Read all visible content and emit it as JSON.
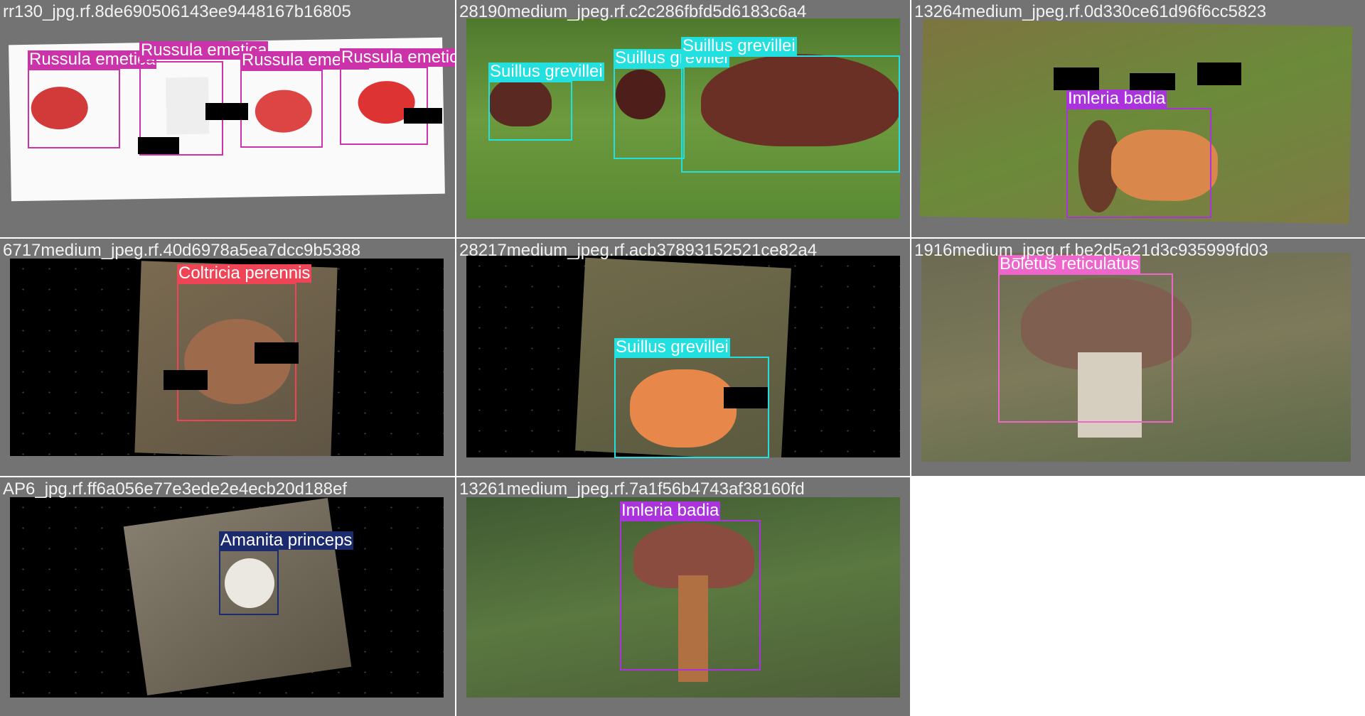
{
  "colors": {
    "russula": "#cc33aa",
    "suillus": "#22e0e0",
    "imleria": "#aa33dd",
    "coltricia": "#ee4455",
    "boletus": "#ee66cc",
    "amanita": "#1c2a6e"
  },
  "tiles": [
    {
      "name": "rr130_jpg.rf.8de690506143ee9448167b16805",
      "boxes": [
        {
          "label": "Russula emetica",
          "color": "russula"
        },
        {
          "label": "Russula emetica",
          "color": "russula"
        },
        {
          "label": "Russula emetica",
          "color": "russula"
        },
        {
          "label": "Russula emetica",
          "color": "russula"
        }
      ]
    },
    {
      "name": "28190medium_jpeg.rf.c2c286fbfd5d6183c6a4",
      "boxes": [
        {
          "label": "Suillus grevillei",
          "color": "suillus"
        },
        {
          "label": "Suillus grevillei",
          "color": "suillus"
        },
        {
          "label": "Suillus grevillei",
          "color": "suillus"
        }
      ]
    },
    {
      "name": "13264medium_jpeg.rf.0d330ce61d96f6cc5823",
      "boxes": [
        {
          "label": "Imleria badia",
          "color": "imleria"
        }
      ]
    },
    {
      "name": "6717medium_jpeg.rf.40d6978a5ea7dcc9b5388",
      "boxes": [
        {
          "label": "Coltricia perennis",
          "color": "coltricia"
        }
      ]
    },
    {
      "name": "28217medium_jpeg.rf.acb37893152521ce82a4",
      "boxes": [
        {
          "label": "Suillus grevillei",
          "color": "suillus"
        }
      ]
    },
    {
      "name": "1916medium_jpeg.rf.be2d5a21d3c935999fd03",
      "boxes": [
        {
          "label": "Boletus reticulatus",
          "color": "boletus"
        }
      ]
    },
    {
      "name": "AP6_jpg.rf.ff6a056e77e3ede2e4ecb20d188ef",
      "boxes": [
        {
          "label": "Amanita princeps",
          "color": "amanita"
        }
      ]
    },
    {
      "name": "13261medium_jpeg.rf.7a1f56b4743af38160fd",
      "boxes": [
        {
          "label": "Imleria badia",
          "color": "imleria"
        }
      ]
    }
  ]
}
